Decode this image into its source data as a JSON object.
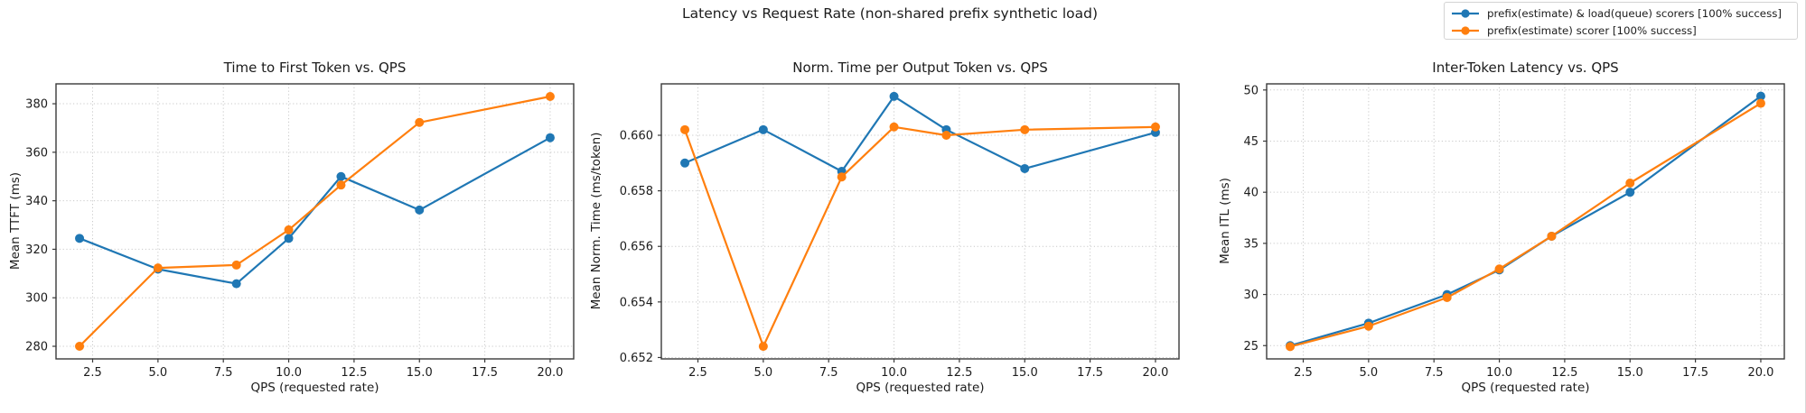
{
  "figure": {
    "title": "Latency vs Request Rate (non-shared prefix synthetic load)"
  },
  "legend": {
    "items": [
      {
        "label": "prefix(estimate) & load(queue) scorers [100% success]",
        "color": "#1f77b4"
      },
      {
        "label": "prefix(estimate) scorer [100% success]",
        "color": "#ff7f0e"
      }
    ]
  },
  "colors": {
    "blue_series": "#1f77b4",
    "orange_series": "#ff7f0e",
    "grid": "#c9c9c9",
    "frame": "#3a3a3a",
    "text": "#1c1c1c"
  },
  "chart_data": [
    {
      "id": "ttft",
      "type": "line",
      "title": "Time to First Token vs. QPS",
      "xlabel": "QPS (requested rate)",
      "ylabel": "Mean TTFT (ms)",
      "x": [
        2,
        5,
        8,
        10,
        12,
        15,
        20
      ],
      "series": [
        {
          "name": "prefix(estimate) & load(queue) scorers [100% success]",
          "color": "#1f77b4",
          "values": [
            324.5,
            311.8,
            305.8,
            324.5,
            350.0,
            336.2,
            366.0
          ]
        },
        {
          "name": "prefix(estimate) scorer [100% success]",
          "color": "#ff7f0e",
          "values": [
            280.0,
            312.3,
            313.5,
            328.0,
            346.5,
            372.3,
            383.0
          ]
        }
      ],
      "xlim": [
        1.1,
        20.9
      ],
      "ylim": [
        274.8,
        388.2
      ],
      "xticks": [
        2.5,
        5,
        7.5,
        10,
        12.5,
        15,
        17.5,
        20
      ],
      "xtick_labels": [
        "2.5",
        "5.0",
        "7.5",
        "10.0",
        "12.5",
        "15.0",
        "17.5",
        "20.0"
      ],
      "yticks": [
        280,
        300,
        320,
        340,
        360,
        380
      ],
      "ytick_labels": [
        "280",
        "300",
        "320",
        "340",
        "360",
        "380"
      ],
      "grid": true,
      "legend_position": "figure-top-right"
    },
    {
      "id": "ntpot",
      "type": "line",
      "title": "Norm. Time per Output Token vs. QPS",
      "xlabel": "QPS (requested rate)",
      "ylabel": "Mean Norm. Time (ms/token)",
      "x": [
        2,
        5,
        8,
        10,
        12,
        15,
        20
      ],
      "series": [
        {
          "name": "prefix(estimate) & load(queue) scorers [100% success]",
          "color": "#1f77b4",
          "values": [
            0.659,
            0.6602,
            0.6587,
            0.6614,
            0.6602,
            0.6588,
            0.6601
          ]
        },
        {
          "name": "prefix(estimate) scorer [100% success]",
          "color": "#ff7f0e",
          "values": [
            0.6602,
            0.6524,
            0.6585,
            0.6603,
            0.66,
            0.6602,
            0.6603
          ]
        }
      ],
      "xlim": [
        1.1,
        20.9
      ],
      "ylim": [
        0.65195,
        0.66185
      ],
      "xticks": [
        2.5,
        5,
        7.5,
        10,
        12.5,
        15,
        17.5,
        20
      ],
      "xtick_labels": [
        "2.5",
        "5.0",
        "7.5",
        "10.0",
        "12.5",
        "15.0",
        "17.5",
        "20.0"
      ],
      "yticks": [
        0.652,
        0.654,
        0.656,
        0.658,
        0.66
      ],
      "ytick_labels": [
        "0.652",
        "0.654",
        "0.656",
        "0.658",
        "0.660"
      ],
      "grid": true
    },
    {
      "id": "itl",
      "type": "line",
      "title": "Inter-Token Latency vs. QPS",
      "xlabel": "QPS (requested rate)",
      "ylabel": "Mean ITL (ms)",
      "x": [
        2,
        5,
        8,
        10,
        12,
        15,
        20
      ],
      "series": [
        {
          "name": "prefix(estimate) & load(queue) scorers [100% success]",
          "color": "#1f77b4",
          "values": [
            25.0,
            27.2,
            30.0,
            32.4,
            35.7,
            40.0,
            49.4
          ]
        },
        {
          "name": "prefix(estimate) scorer [100% success]",
          "color": "#ff7f0e",
          "values": [
            24.9,
            26.9,
            29.7,
            32.5,
            35.7,
            40.9,
            48.7
          ]
        }
      ],
      "xlim": [
        1.1,
        20.9
      ],
      "ylim": [
        23.7,
        50.6
      ],
      "xticks": [
        2.5,
        5,
        7.5,
        10,
        12.5,
        15,
        17.5,
        20
      ],
      "xtick_labels": [
        "2.5",
        "5.0",
        "7.5",
        "10.0",
        "12.5",
        "15.0",
        "17.5",
        "20.0"
      ],
      "yticks": [
        25,
        30,
        35,
        40,
        45,
        50
      ],
      "ytick_labels": [
        "25",
        "30",
        "35",
        "40",
        "45",
        "50"
      ],
      "grid": true
    }
  ]
}
